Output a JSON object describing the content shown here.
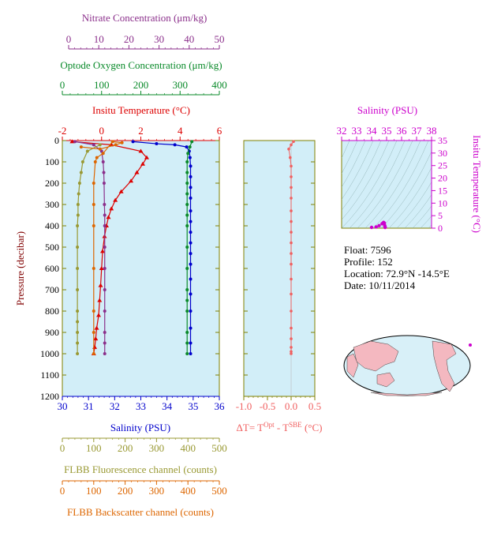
{
  "axes": {
    "nitrate": {
      "label": "Nitrate Concentration (μm/kg)",
      "ticks": [
        "0",
        "10",
        "20",
        "30",
        "40",
        "50"
      ],
      "min": 0,
      "max": 50,
      "color": "#8b2f8b"
    },
    "oxygen": {
      "label": "Optode Oxygen Concentration (μm/kg)",
      "ticks": [
        "0",
        "100",
        "200",
        "300",
        "400"
      ],
      "min": 0,
      "max": 400,
      "color": "#0a8a2a"
    },
    "temperature": {
      "label": "Insitu Temperature (°C)",
      "ticks": [
        "-2",
        "0",
        "2",
        "4",
        "6"
      ],
      "min": -2,
      "max": 6,
      "color": "#dd0000"
    },
    "pressure": {
      "label": "Pressure (decibar)",
      "ticks": [
        "0",
        "100",
        "200",
        "300",
        "400",
        "500",
        "600",
        "700",
        "800",
        "900",
        "1000",
        "1100",
        "1200"
      ],
      "min": 0,
      "max": 1200
    },
    "salinity": {
      "label": "Salinity (PSU)",
      "ticks": [
        "30",
        "31",
        "32",
        "33",
        "34",
        "35",
        "36"
      ],
      "min": 30,
      "max": 36,
      "color": "#0000cc"
    },
    "fluorescence": {
      "label": "FLBB Fluorescence channel (counts)",
      "ticks": [
        "0",
        "100",
        "200",
        "300",
        "400",
        "500"
      ],
      "min": 0,
      "max": 500,
      "color": "#999933"
    },
    "backscatter": {
      "label": "FLBB Backscatter channel (counts)",
      "ticks": [
        "0",
        "100",
        "200",
        "300",
        "400",
        "500"
      ],
      "min": 0,
      "max": 500,
      "color": "#dd6600"
    },
    "delta_t": {
      "label_main": "ΔT= T",
      "label_sup1": "Opt",
      "label_mid": " - T",
      "label_sup2": "SBE",
      "label_unit": " (°C)",
      "ticks": [
        "-1.0",
        "-0.5",
        "0.0",
        "0.5"
      ],
      "min": -1.0,
      "max": 0.5,
      "color": "#f06060"
    },
    "ts_salinity": {
      "label": "Salinity (PSU)",
      "ticks": [
        "32",
        "33",
        "34",
        "35",
        "36",
        "37",
        "38"
      ],
      "min": 32,
      "max": 38,
      "color": "#cc00cc"
    },
    "ts_temperature": {
      "label": "Insitu Temperature (°C)",
      "ticks": [
        "0",
        "5",
        "10",
        "15",
        "20",
        "25",
        "30",
        "35"
      ],
      "min": 0,
      "max": 35,
      "color": "#cc00cc"
    }
  },
  "info": {
    "float": "Float:  7596",
    "profile": "Profile:  152",
    "location": "Location:  72.9°N  -14.5°E",
    "date": "Date:  10/11/2014"
  },
  "footer_note": "",
  "colors": {
    "panel_bg": "#d2eef8",
    "frame": "#808000",
    "grid_line": "#bbbbbb"
  },
  "chart_data": [
    {
      "type": "line",
      "name_ref": "main_profiles",
      "y_axis": "pressure",
      "series": [
        {
          "key": "salinity",
          "color": "#0000cc",
          "marker": "circle",
          "x": [
            32.7,
            33.6,
            34.3,
            34.75,
            34.85,
            34.88,
            34.9,
            34.9,
            34.9,
            34.9,
            34.9,
            34.9,
            34.9,
            34.9,
            34.9,
            34.9,
            34.9,
            34.9,
            34.9,
            34.9,
            34.9,
            34.9
          ],
          "y": [
            5,
            15,
            20,
            30,
            50,
            80,
            120,
            170,
            220,
            270,
            330,
            380,
            430,
            480,
            530,
            580,
            650,
            720,
            800,
            880,
            950,
            1000
          ]
        },
        {
          "key": "temperature",
          "color": "#dd0000",
          "marker": "triangle",
          "x": [
            -1.5,
            0.5,
            2.0,
            2.3,
            2.1,
            1.8,
            1.5,
            1.0,
            0.7,
            0.5,
            0.35,
            0.25,
            0.15,
            0.05,
            0.0,
            -0.05,
            -0.1,
            -0.15,
            -0.25,
            -0.3,
            -0.35,
            -0.4
          ],
          "y": [
            5,
            20,
            50,
            80,
            110,
            150,
            190,
            240,
            280,
            320,
            360,
            400,
            450,
            520,
            600,
            680,
            750,
            820,
            880,
            930,
            970,
            1000
          ]
        },
        {
          "key": "oxygen",
          "color": "#0a8a2a",
          "marker": "circle",
          "x": [
            330,
            325,
            320,
            318,
            318,
            318,
            318,
            318,
            318,
            318,
            318,
            318,
            318,
            318,
            318,
            318,
            318,
            318
          ],
          "y": [
            5,
            30,
            60,
            100,
            150,
            200,
            250,
            300,
            350,
            400,
            500,
            600,
            700,
            750,
            800,
            900,
            950,
            1000
          ]
        },
        {
          "key": "nitrate",
          "color": "#8b2f8b",
          "marker": "circle",
          "x": [
            4,
            10,
            12.5,
            13,
            13.2,
            13.3,
            13.4,
            13.5,
            13.5,
            13.5,
            13.5,
            13.5,
            13.5,
            13.5,
            13.5,
            13.5
          ],
          "y": [
            5,
            20,
            50,
            100,
            150,
            200,
            300,
            350,
            400,
            500,
            600,
            700,
            800,
            900,
            950,
            1000
          ]
        },
        {
          "key": "fluorescence",
          "color": "#999933",
          "marker": "circle",
          "x": [
            120,
            80,
            65,
            60,
            55,
            52,
            50,
            50,
            48,
            48,
            48,
            48,
            48,
            48,
            48,
            48,
            48
          ],
          "y": [
            20,
            50,
            100,
            150,
            200,
            250,
            300,
            350,
            400,
            500,
            600,
            700,
            800,
            850,
            900,
            950,
            1000
          ]
        },
        {
          "key": "backscatter",
          "color": "#dd6600",
          "marker": "circle",
          "x": [
            60,
            120,
            170,
            190,
            160,
            130,
            110,
            105,
            100,
            100,
            100,
            100,
            100,
            100,
            100
          ],
          "y": [
            30,
            40,
            20,
            10,
            5,
            60,
            80,
            100,
            200,
            300,
            400,
            600,
            800,
            900,
            1000
          ]
        }
      ]
    },
    {
      "type": "line",
      "name_ref": "delta_t",
      "series": [
        {
          "key": "delta_t",
          "color": "#f06060",
          "marker": "circle",
          "x": [
            0.05,
            0.0,
            -0.05,
            -0.02,
            0.0,
            0.0,
            0.0,
            0.0,
            0.0,
            0.0,
            0.0,
            0.0,
            0.0,
            0.0,
            0.0,
            0.0,
            0.0,
            0.0,
            0.0,
            0.0,
            0.0,
            0.0
          ],
          "y": [
            5,
            20,
            40,
            80,
            120,
            170,
            220,
            270,
            330,
            380,
            430,
            480,
            530,
            580,
            650,
            720,
            800,
            880,
            930,
            970,
            990,
            1000
          ]
        }
      ]
    },
    {
      "type": "scatter",
      "name_ref": "ts_diagram",
      "series": [
        {
          "key": "ts",
          "color": "#cc00cc",
          "marker": "circle",
          "x": [
            34.0,
            34.3,
            34.5,
            34.7,
            34.8,
            34.85,
            34.88,
            34.9,
            34.9,
            34.9
          ],
          "y": [
            -1.5,
            0.5,
            1.0,
            1.8,
            2.3,
            2.0,
            1.0,
            0.5,
            0.0,
            -0.3
          ]
        }
      ]
    }
  ]
}
